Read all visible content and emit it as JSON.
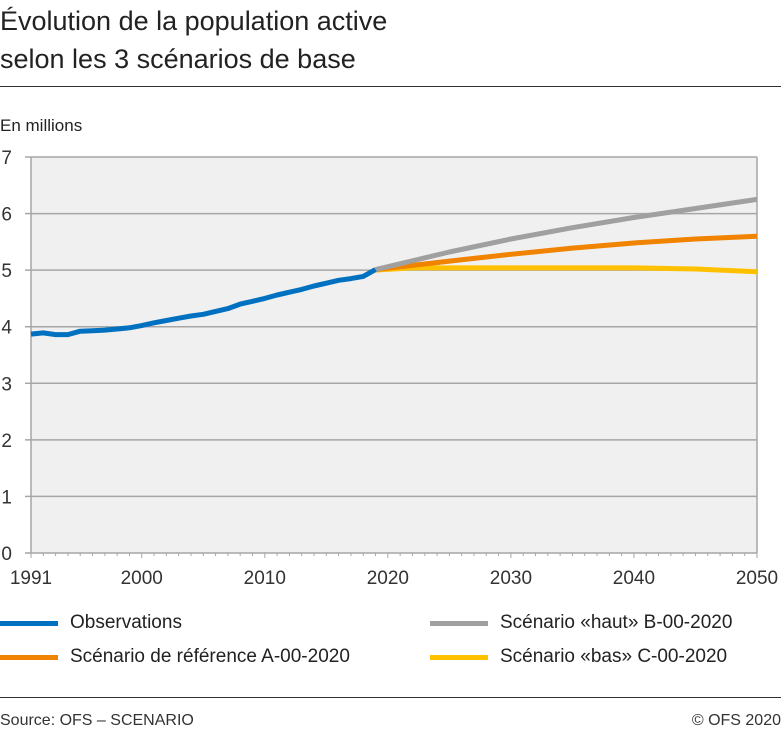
{
  "title_line1": "Évolution de la population active",
  "title_line2": "selon les 3 scénarios de base",
  "source": "Source: OFS – SCENARIO",
  "copyright": "© OFS 2020",
  "chart_data": {
    "type": "line",
    "ylabel": "En millions",
    "xlim": [
      1991,
      2050
    ],
    "ylim": [
      0,
      7
    ],
    "x_ticks": [
      1991,
      2000,
      2010,
      2020,
      2030,
      2040,
      2050
    ],
    "y_ticks": [
      0,
      1,
      2,
      3,
      4,
      5,
      6,
      7
    ],
    "grid": true,
    "legend": "bottom",
    "series": [
      {
        "name": "Observations",
        "color": "#0070c0",
        "x": [
          1991,
          1992,
          1993,
          1994,
          1995,
          1996,
          1997,
          1998,
          1999,
          2000,
          2001,
          2002,
          2003,
          2004,
          2005,
          2006,
          2007,
          2008,
          2009,
          2010,
          2011,
          2012,
          2013,
          2014,
          2015,
          2016,
          2017,
          2018,
          2019
        ],
        "y": [
          3.87,
          3.89,
          3.86,
          3.86,
          3.92,
          3.93,
          3.94,
          3.96,
          3.98,
          4.02,
          4.07,
          4.11,
          4.15,
          4.19,
          4.22,
          4.27,
          4.32,
          4.4,
          4.45,
          4.5,
          4.56,
          4.61,
          4.66,
          4.72,
          4.77,
          4.82,
          4.85,
          4.89,
          5.01
        ]
      },
      {
        "name": "Scénario «haut» B-00-2020",
        "color": "#a0a0a0",
        "x": [
          2019,
          2025,
          2030,
          2035,
          2040,
          2045,
          2050
        ],
        "y": [
          5.01,
          5.32,
          5.55,
          5.75,
          5.93,
          6.09,
          6.25
        ]
      },
      {
        "name": "Scénario de référence A-00-2020",
        "color": "#f08300",
        "x": [
          2019,
          2025,
          2030,
          2035,
          2040,
          2045,
          2050
        ],
        "y": [
          5.01,
          5.16,
          5.28,
          5.39,
          5.48,
          5.55,
          5.6
        ]
      },
      {
        "name": "Scénario «bas» C-00-2020",
        "color": "#ffc000",
        "x": [
          2019,
          2022,
          2025,
          2030,
          2035,
          2040,
          2045,
          2050
        ],
        "y": [
          5.0,
          5.04,
          5.04,
          5.04,
          5.04,
          5.04,
          5.02,
          4.97
        ]
      }
    ]
  }
}
